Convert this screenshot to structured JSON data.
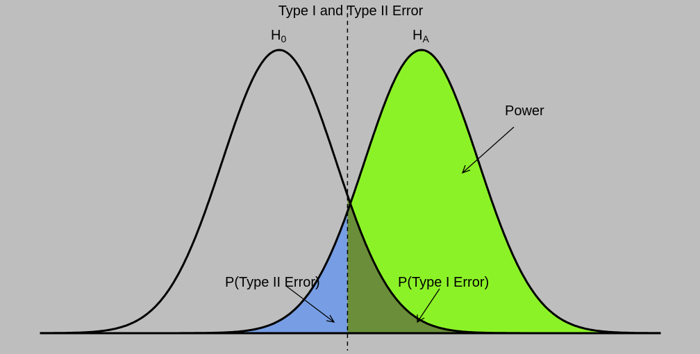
{
  "title": "Type I and Type II Error",
  "labels": {
    "h0": "H",
    "h0_sub": "0",
    "ha": "H",
    "ha_sub": "A",
    "power": "Power",
    "type2": "P(Type II Error)",
    "type1": "P(Type I Error)"
  },
  "colors": {
    "background": "#bebebe",
    "power_fill": "#8cf228",
    "type2_fill": "#779ee4",
    "type1_fill": "#6b8e3a",
    "curve": "#000000"
  },
  "distributions": {
    "h0": {
      "mean": 0,
      "sd": 1
    },
    "ha": {
      "mean": 2.5,
      "sd": 1
    },
    "critical_value": 1.2
  }
}
